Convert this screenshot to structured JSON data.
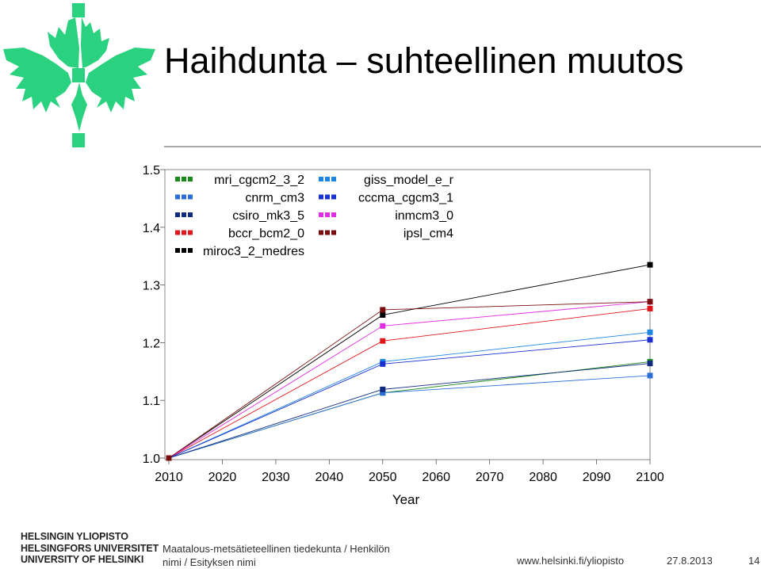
{
  "slide": {
    "title": "Haihdunta – suhteellinen muutos",
    "logo_icon": "university-flame-logo-icon",
    "logo_color": "#2ad17f"
  },
  "footer": {
    "university_lines": [
      "HELSINGIN YLIOPISTO",
      "HELSINGFORS UNIVERSITET",
      "UNIVERSITY OF HELSINKI"
    ],
    "department": "Maatalous-metsätieteellinen tiedekunta / Henkilön nimi / Esityksen nimi",
    "url": "www.helsinki.fi/yliopisto",
    "date": "27.8.2013",
    "page": "14"
  },
  "chart_data": {
    "type": "line",
    "xlabel": "Year",
    "ylabel": "",
    "x": [
      2010,
      2050,
      2100
    ],
    "xticks": [
      "2010",
      "2020",
      "2030",
      "2040",
      "2050",
      "2060",
      "2070",
      "2080",
      "2090",
      "2100"
    ],
    "yticks": [
      "1.0",
      "1.1",
      "1.2",
      "1.3",
      "1.4",
      "1.5"
    ],
    "xlim": [
      2010,
      2100
    ],
    "ylim": [
      1.0,
      1.5
    ],
    "grid": false,
    "legend_position": "top-left",
    "series": [
      {
        "name": "mri_cgcm2_3_2",
        "color": "#1a8a1a",
        "values": [
          1.0,
          1.113,
          1.167
        ]
      },
      {
        "name": "cnrm_cm3",
        "color": "#2b6fd6",
        "values": [
          1.0,
          1.113,
          1.143
        ]
      },
      {
        "name": "csiro_mk3_5",
        "color": "#102a80",
        "values": [
          1.0,
          1.119,
          1.164
        ]
      },
      {
        "name": "bccr_bcm2_0",
        "color": "#e0161b",
        "values": [
          1.0,
          1.203,
          1.259
        ]
      },
      {
        "name": "miroc3_2_medres",
        "color": "#000000",
        "values": [
          1.0,
          1.248,
          1.335
        ]
      },
      {
        "name": "giss_model_e_r",
        "color": "#1d86e0",
        "values": [
          1.0,
          1.167,
          1.218
        ]
      },
      {
        "name": "cccma_cgcm3_1",
        "color": "#1a2fd0",
        "values": [
          1.0,
          1.163,
          1.205
        ]
      },
      {
        "name": "inmcm3_0",
        "color": "#e02fe0",
        "values": [
          1.0,
          1.229,
          1.271
        ]
      },
      {
        "name": "ipsl_cm4",
        "color": "#7a0d0d",
        "values": [
          1.0,
          1.257,
          1.271
        ]
      }
    ]
  }
}
